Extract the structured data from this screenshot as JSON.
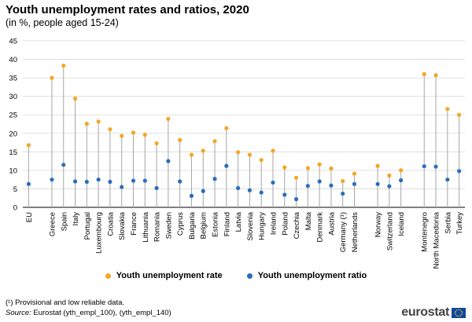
{
  "title": "Youth unemployment rates and ratios, 2020",
  "subtitle": "(in %, people aged 15-24)",
  "note": "(¹) Provisional and low reliable data.",
  "source_label": "Source:",
  "source_text": " Eurostat (yth_empl_100), (yth_empl_140)",
  "logo_text": "eurostat",
  "colors": {
    "rate": "#f5a623",
    "ratio": "#2a6ebb",
    "stem": "#a6a6a6",
    "grid": "#d9d9d9"
  },
  "chart_data": {
    "type": "scatter",
    "ylim": [
      0,
      45
    ],
    "yticks": [
      0,
      5,
      10,
      15,
      20,
      25,
      30,
      35,
      40,
      45
    ],
    "grid": true,
    "legend_position": "bottom",
    "categories": [
      "EU",
      "Greece",
      "Spain",
      "Italy",
      "Portugal",
      "Luxembourg",
      "Croatia",
      "Slovakia",
      "France",
      "Lithuania",
      "Romania",
      "Sweden",
      "Cyprus",
      "Bulgaria",
      "Belgium",
      "Estonia",
      "Finland",
      "Latvia",
      "Slovenia",
      "Hungary",
      "Ireland",
      "Poland",
      "Czechia",
      "Malta",
      "Denmark",
      "Austria",
      "Germany (¹)",
      "Netherlands",
      "Norway",
      "Switzerland",
      "Iceland",
      "Montenegro",
      "North Macedonia",
      "Serbia",
      "Turkey"
    ],
    "gap_after": [
      "EU",
      "Netherlands",
      "Iceland"
    ],
    "series": [
      {
        "name": "Youth unemployment rate",
        "values": [
          16.8,
          35.0,
          38.3,
          29.4,
          22.6,
          23.2,
          21.1,
          19.3,
          20.2,
          19.6,
          17.3,
          23.9,
          18.2,
          14.2,
          15.3,
          17.9,
          21.4,
          14.9,
          14.2,
          12.8,
          15.3,
          10.8,
          8.0,
          10.6,
          11.6,
          10.5,
          7.1,
          9.1,
          11.2,
          8.6,
          10.0,
          36.0,
          35.7,
          26.6,
          25.0
        ]
      },
      {
        "name": "Youth unemployment ratio",
        "values": [
          6.3,
          7.5,
          11.5,
          7.0,
          6.9,
          7.5,
          6.9,
          5.5,
          7.2,
          7.2,
          5.2,
          12.5,
          7.0,
          3.1,
          4.4,
          7.7,
          11.2,
          5.2,
          4.6,
          4.0,
          6.7,
          3.4,
          2.2,
          5.8,
          7.0,
          5.9,
          3.7,
          6.3,
          6.3,
          5.7,
          7.3,
          11.1,
          11.0,
          7.5,
          9.8
        ]
      }
    ]
  }
}
